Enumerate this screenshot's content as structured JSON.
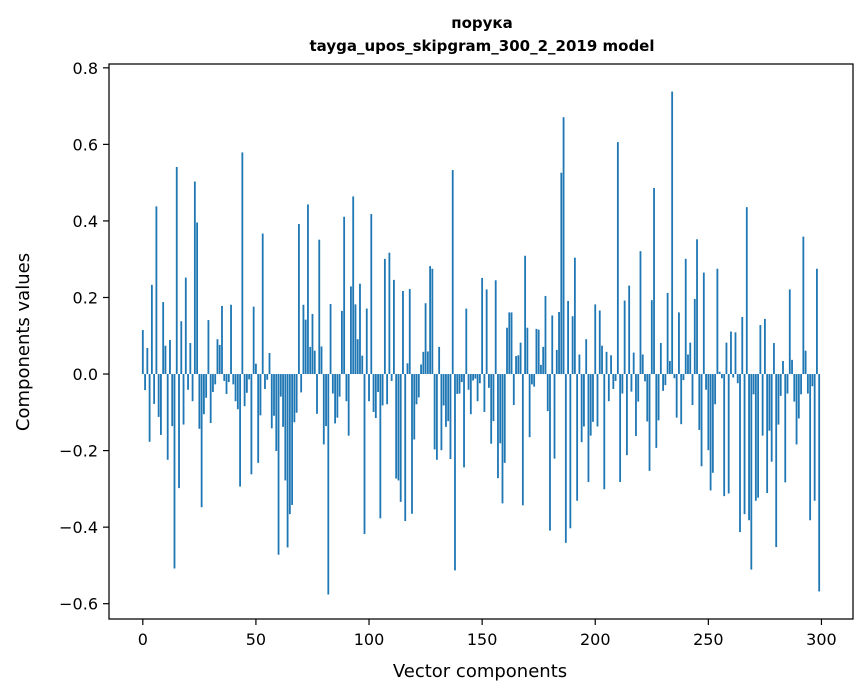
{
  "chart_data": {
    "type": "bar",
    "title": "порука",
    "subtitle": "tayga_upos_skipgram_300_2_2019 model",
    "xlabel": "Vector components",
    "ylabel": "Components values",
    "xlim": [
      -14.95,
      313.95
    ],
    "ylim": [
      -0.64,
      0.81
    ],
    "xticks": [
      0,
      50,
      100,
      150,
      200,
      250,
      300
    ],
    "xtick_labels": [
      "0",
      "50",
      "100",
      "150",
      "200",
      "250",
      "300"
    ],
    "yticks": [
      -0.6,
      -0.4,
      -0.2,
      0.0,
      0.2,
      0.4,
      0.6,
      0.8
    ],
    "ytick_labels": [
      "−0.6",
      "−0.4",
      "−0.2",
      "0.0",
      "0.2",
      "0.4",
      "0.6",
      "0.8"
    ],
    "grid": false,
    "bar_color": "#1f77b4",
    "values": [
      0.115,
      -0.042,
      0.068,
      -0.177,
      0.233,
      -0.078,
      0.438,
      -0.112,
      -0.159,
      0.188,
      0.074,
      -0.224,
      0.089,
      -0.136,
      -0.508,
      0.541,
      -0.298,
      0.138,
      -0.132,
      0.252,
      -0.041,
      0.081,
      -0.071,
      0.503,
      0.396,
      -0.143,
      -0.348,
      -0.105,
      -0.062,
      0.141,
      -0.128,
      -0.047,
      -0.027,
      0.091,
      0.076,
      0.178,
      -0.018,
      -0.052,
      -0.021,
      0.181,
      -0.027,
      -0.071,
      -0.092,
      -0.294,
      0.579,
      -0.084,
      -0.049,
      -0.014,
      -0.262,
      0.176,
      0.027,
      -0.232,
      -0.108,
      0.367,
      -0.039,
      -0.015,
      0.055,
      -0.142,
      -0.109,
      -0.201,
      -0.472,
      -0.059,
      -0.138,
      -0.278,
      -0.453,
      -0.366,
      -0.342,
      -0.126,
      -0.101,
      0.392,
      -0.048,
      0.181,
      0.142,
      0.443,
      0.071,
      0.157,
      0.061,
      -0.104,
      0.351,
      0.072,
      -0.184,
      -0.136,
      -0.576,
      0.183,
      -0.051,
      -0.129,
      -0.114,
      -0.059,
      0.165,
      0.411,
      -0.071,
      -0.161,
      0.229,
      0.464,
      0.182,
      0.091,
      0.236,
      0.048,
      -0.418,
      0.171,
      -0.071,
      0.418,
      -0.099,
      -0.115,
      -0.047,
      -0.377,
      -0.082,
      0.301,
      -0.079,
      0.317,
      -0.018,
      0.246,
      -0.273,
      -0.278,
      -0.334,
      0.217,
      -0.384,
      0.028,
      0.222,
      -0.365,
      -0.171,
      -0.079,
      -0.061,
      0.025,
      0.058,
      0.185,
      0.059,
      0.282,
      0.275,
      -0.197,
      -0.224,
      0.071,
      -0.199,
      -0.082,
      -0.138,
      -0.123,
      -0.222,
      0.533,
      -0.513,
      -0.052,
      -0.051,
      -0.021,
      -0.244,
      0.171,
      -0.041,
      -0.105,
      -0.017,
      -0.012,
      -0.071,
      -0.024,
      0.251,
      -0.099,
      0.221,
      -0.036,
      -0.182,
      -0.123,
      0.245,
      -0.272,
      -0.181,
      -0.338,
      -0.232,
      0.121,
      0.161,
      0.161,
      -0.081,
      0.047,
      0.049,
      0.082,
      -0.343,
      0.309,
      0.121,
      -0.165,
      -0.027,
      -0.033,
      0.118,
      0.116,
      0.024,
      0.071,
      0.204,
      -0.097,
      -0.409,
      0.153,
      -0.221,
      0.063,
      0.162,
      0.526,
      0.671,
      -0.441,
      0.191,
      -0.403,
      0.151,
      0.304,
      -0.331,
      0.051,
      -0.178,
      -0.137,
      0.091,
      -0.282,
      -0.161,
      -0.125,
      0.182,
      -0.137,
      0.166,
      0.074,
      -0.301,
      0.058,
      -0.071,
      0.049,
      -0.039,
      -0.018,
      0.606,
      -0.282,
      -0.051,
      0.192,
      -0.212,
      0.231,
      -0.046,
      0.056,
      -0.162,
      -0.072,
      0.321,
      0.051,
      -0.019,
      -0.124,
      -0.253,
      0.193,
      0.486,
      -0.193,
      -0.121,
      0.081,
      -0.044,
      -0.029,
      0.212,
      0.034,
      0.738,
      -0.011,
      -0.114,
      0.161,
      -0.131,
      -0.016,
      0.301,
      0.051,
      0.082,
      -0.081,
      0.196,
      0.352,
      -0.146,
      -0.241,
      0.265,
      -0.041,
      -0.199,
      -0.304,
      -0.258,
      -0.079,
      0.275,
      0.006,
      -0.011,
      -0.319,
      0.082,
      -0.312,
      0.111,
      -0.009,
      0.109,
      -0.024,
      -0.413,
      0.149,
      -0.366,
      0.436,
      -0.382,
      -0.511,
      -0.053,
      -0.331,
      -0.323,
      0.128,
      -0.161,
      0.144,
      -0.311,
      -0.148,
      -0.229,
      0.081,
      -0.452,
      -0.132,
      -0.057,
      0.034,
      -0.283,
      -0.051,
      0.221,
      0.037,
      -0.072,
      -0.184,
      -0.116,
      -0.053,
      0.359,
      0.061,
      -0.051,
      -0.382,
      -0.032,
      -0.331,
      0.275,
      -0.568
    ]
  }
}
